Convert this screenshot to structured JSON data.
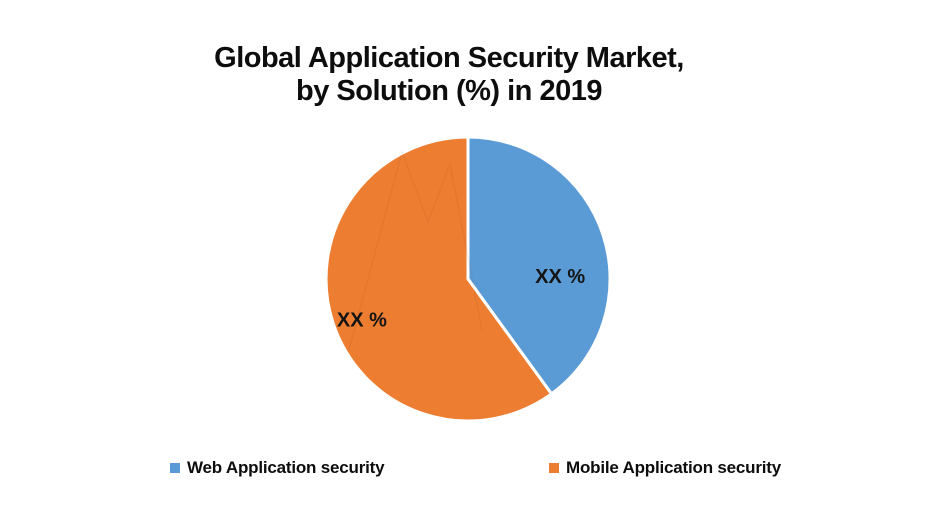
{
  "title": {
    "line1": "Global Application Security Market,",
    "line2": "by Solution (%) in 2019"
  },
  "chart_data": {
    "type": "pie",
    "title": "Global Application Security Market, by Solution (%) in 2019",
    "slices": [
      {
        "id": "web-application-security",
        "name": "Web Application security",
        "label": "XX %",
        "value": 40,
        "color": "#5B9BD5",
        "label_angle_deg": 88,
        "label_radius_frac": 0.65
      },
      {
        "id": "mobile-application-security",
        "name": "Mobile Application security",
        "label": "XX %",
        "value": 60,
        "color": "#ED7D31",
        "label_angle_deg": 249,
        "label_radius_frac": 0.8
      }
    ],
    "start_angle_deg": 0,
    "direction": "clockwise",
    "slice_border_color": "#FFFFFF",
    "legend_position": "bottom",
    "background": "#FFFFFF"
  }
}
